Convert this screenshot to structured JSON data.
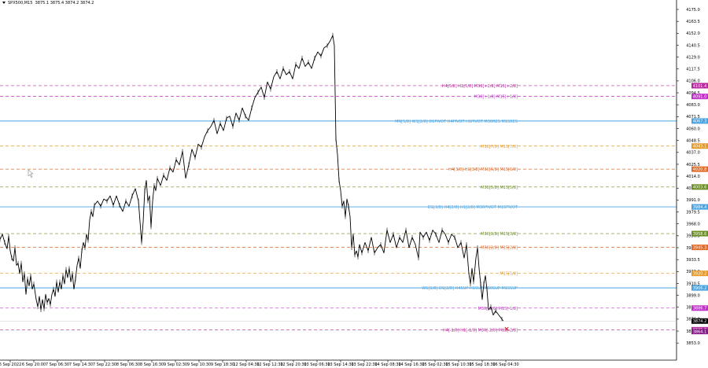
{
  "header": {
    "symbol": "SPX500,M15",
    "ohlc": "3875.1 3875.4 3874.2 3874.2"
  },
  "price_axis": {
    "ticks": [
      "4175.0",
      "4163.5",
      "4152.0",
      "4140.5",
      "4129.0",
      "4117.5",
      "4106.0",
      "4094.5",
      "4083.0",
      "4071.5",
      "4060.0",
      "4048.5",
      "4037.0",
      "4025.5",
      "4014.0",
      "4002.5",
      "3991.0",
      "3979.5",
      "3968.0",
      "3956.5",
      "3945.0",
      "3933.5",
      "3922.0",
      "3910.5",
      "3899.0",
      "3887.5",
      "3876.0",
      "3864.5",
      "3853.0"
    ]
  },
  "time_axis": {
    "labels": [
      "6 Sep 2022",
      "6 Sep 20:00",
      "7 Sep 06:30",
      "7 Sep 14:30",
      "7 Sep 22:30",
      "8 Sep 06:30",
      "8 Sep 16:30",
      "9 Sep 02:30",
      "9 Sep 10:30",
      "9 Sep 18:30",
      "12 Sep 04:30",
      "12 Sep 12:30",
      "12 Sep 20:30",
      "13 Sep 06:30",
      "13 Sep 14:30",
      "13 Sep 22:30",
      "14 Sep 08:30",
      "14 Sep 16:30",
      "15 Sep 02:30",
      "15 Sep 10:30",
      "15 Sep 18:30",
      "16 Sep 04:30"
    ]
  },
  "levels": [
    {
      "label": "H4[5/8] H1[5/8] M30[+2/8] M15[+2/8]",
      "price": 4101.4,
      "tag": "4101.4",
      "color": "#b8289c",
      "style": "dash"
    },
    {
      "label": "M30[+1/8] M15[+1/8]",
      "price": 4091.0,
      "tag": "4091.0",
      "color": "#c030c8",
      "style": "dash"
    },
    {
      "label": "MN[5/8] W1[2/8] D1PIVOT H4PIVOT H1PIVOT M30RES M15RES",
      "price": 4067.3,
      "tag": "4067.3",
      "color": "#4aa3df",
      "style": "solid"
    },
    {
      "label": "M30[7/8] M15[7/8]",
      "price": 4043.1,
      "tag": "4043.1",
      "color": "#e69a28",
      "style": "dash"
    },
    {
      "label": "H4[3/8] H1[3/8] M30[6/8] M15[6/8]",
      "price": 4020.8,
      "tag": "4020.8",
      "color": "#e06a28",
      "style": "dash"
    },
    {
      "label": "M30[5/8] M15[5/8]",
      "price": 4003.6,
      "tag": "4003.6",
      "color": "#6b8e23",
      "style": "dash"
    },
    {
      "label": "D1[3/8] H4[2/8] H1[2/8] M30PIVOT M15PIVOT",
      "price": 3984.4,
      "tag": "3984.4",
      "color": "#4aa3df",
      "style": "solid"
    },
    {
      "label": "M30[3/8] M15[3/8]",
      "price": 3958.6,
      "tag": "3958.6",
      "color": "#6b8e23",
      "style": "dash"
    },
    {
      "label": "M30[2/8] M15[2/8]",
      "price": 3945.3,
      "tag": "3945.3",
      "color": "#e06a28",
      "style": "dash"
    },
    {
      "label": "M15[1/8]",
      "price": 3920.2,
      "tag": "3920.2",
      "color": "#e69a28",
      "style": "dash"
    },
    {
      "label": "W1[1/8] D1[2/8] H4SUP H1SUP M30SUP M15SUP",
      "price": 3906.2,
      "tag": "3906.2",
      "color": "#4aa3df",
      "style": "solid"
    },
    {
      "label": "M30[-1/8] M15[-1/8]",
      "price": 3886.7,
      "tag": "3886.7",
      "color": "#c030c8",
      "style": "dash"
    },
    {
      "label": "H4[-1/8] H1[-1/8] M30[-2/8] M15[-2/8]",
      "price": 3865.8,
      "tag": "3865.8",
      "color": "#b8289c",
      "style": "dash"
    }
  ],
  "current_price": {
    "price": 3874.2,
    "tag": "3874.2"
  },
  "extra_tag": {
    "price": 3864.1,
    "tag": "3864.1",
    "color": "#8a1a8a"
  },
  "price_path": [
    [
      0,
      3953
    ],
    [
      3,
      3958
    ],
    [
      6,
      3950
    ],
    [
      9,
      3944
    ],
    [
      11,
      3956
    ],
    [
      13,
      3942
    ],
    [
      15,
      3935
    ],
    [
      17,
      3932
    ],
    [
      19,
      3945
    ],
    [
      21,
      3928
    ],
    [
      23,
      3930
    ],
    [
      25,
      3920
    ],
    [
      27,
      3930
    ],
    [
      29,
      3912
    ],
    [
      31,
      3920
    ],
    [
      33,
      3900
    ],
    [
      35,
      3915
    ],
    [
      37,
      3908
    ],
    [
      39,
      3918
    ],
    [
      41,
      3905
    ],
    [
      43,
      3910
    ],
    [
      46,
      3895
    ],
    [
      48,
      3888
    ],
    [
      50,
      3898
    ],
    [
      52,
      3885
    ],
    [
      54,
      3895
    ],
    [
      56,
      3886
    ],
    [
      58,
      3900
    ],
    [
      60,
      3892
    ],
    [
      62,
      3896
    ],
    [
      64,
      3890
    ],
    [
      66,
      3900
    ],
    [
      68,
      3905
    ],
    [
      70,
      3898
    ],
    [
      72,
      3912
    ],
    [
      74,
      3902
    ],
    [
      76,
      3912
    ],
    [
      78,
      3905
    ],
    [
      80,
      3918
    ],
    [
      82,
      3910
    ],
    [
      84,
      3924
    ],
    [
      86,
      3916
    ],
    [
      88,
      3925
    ],
    [
      90,
      3912
    ],
    [
      92,
      3920
    ],
    [
      94,
      3905
    ],
    [
      96,
      3915
    ],
    [
      98,
      3928
    ],
    [
      100,
      3935
    ],
    [
      102,
      3925
    ],
    [
      104,
      3942
    ],
    [
      106,
      3950
    ],
    [
      108,
      3945
    ],
    [
      110,
      3958
    ],
    [
      112,
      3952
    ],
    [
      114,
      3972
    ],
    [
      116,
      3980
    ],
    [
      118,
      3975
    ],
    [
      120,
      3986
    ],
    [
      124,
      3990
    ],
    [
      128,
      3985
    ],
    [
      132,
      3992
    ],
    [
      136,
      3990
    ],
    [
      140,
      3995
    ],
    [
      144,
      3986
    ],
    [
      148,
      3995
    ],
    [
      152,
      3986
    ],
    [
      156,
      3980
    ],
    [
      160,
      3990
    ],
    [
      164,
      3985
    ],
    [
      168,
      3995
    ],
    [
      172,
      4002
    ],
    [
      176,
      3990
    ],
    [
      178,
      3970
    ],
    [
      180,
      3950
    ],
    [
      182,
      3970
    ],
    [
      184,
      4000
    ],
    [
      186,
      4010
    ],
    [
      188,
      3990
    ],
    [
      190,
      3995
    ],
    [
      192,
      3965
    ],
    [
      194,
      3990
    ],
    [
      196,
      4005
    ],
    [
      198,
      4000
    ],
    [
      200,
      4012
    ],
    [
      204,
      4005
    ],
    [
      208,
      4015
    ],
    [
      212,
      4010
    ],
    [
      216,
      4022
    ],
    [
      220,
      4018
    ],
    [
      224,
      4030
    ],
    [
      228,
      4025
    ],
    [
      232,
      4038
    ],
    [
      236,
      4012
    ],
    [
      240,
      4025
    ],
    [
      244,
      4040
    ],
    [
      248,
      4032
    ],
    [
      252,
      4045
    ],
    [
      256,
      4042
    ],
    [
      260,
      4052
    ],
    [
      264,
      4058
    ],
    [
      268,
      4062
    ],
    [
      272,
      4068
    ],
    [
      276,
      4055
    ],
    [
      280,
      4065
    ],
    [
      284,
      4058
    ],
    [
      288,
      4070
    ],
    [
      292,
      4072
    ],
    [
      296,
      4062
    ],
    [
      300,
      4075
    ],
    [
      304,
      4068
    ],
    [
      308,
      4080
    ],
    [
      312,
      4072
    ],
    [
      316,
      4068
    ],
    [
      320,
      4080
    ],
    [
      324,
      4090
    ],
    [
      328,
      4095
    ],
    [
      332,
      4100
    ],
    [
      336,
      4090
    ],
    [
      340,
      4105
    ],
    [
      344,
      4098
    ],
    [
      348,
      4110
    ],
    [
      352,
      4115
    ],
    [
      356,
      4108
    ],
    [
      360,
      4118
    ],
    [
      364,
      4112
    ],
    [
      368,
      4115
    ],
    [
      372,
      4108
    ],
    [
      376,
      4122
    ],
    [
      380,
      4118
    ],
    [
      384,
      4128
    ],
    [
      388,
      4120
    ],
    [
      392,
      4124
    ],
    [
      396,
      4118
    ],
    [
      400,
      4128
    ],
    [
      404,
      4134
    ],
    [
      408,
      4130
    ],
    [
      412,
      4138
    ],
    [
      416,
      4140
    ],
    [
      420,
      4145
    ],
    [
      423,
      4150
    ],
    [
      425,
      4140
    ],
    [
      427,
      4050
    ],
    [
      429,
      4035
    ],
    [
      431,
      4010
    ],
    [
      433,
      4000
    ],
    [
      435,
      3985
    ],
    [
      437,
      3990
    ],
    [
      439,
      3975
    ],
    [
      441,
      3992
    ],
    [
      443,
      3985
    ],
    [
      445,
      3975
    ],
    [
      447,
      3945
    ],
    [
      449,
      3958
    ],
    [
      451,
      3938
    ],
    [
      453,
      3942
    ],
    [
      455,
      3936
    ],
    [
      457,
      3948
    ],
    [
      460,
      3940
    ],
    [
      464,
      3950
    ],
    [
      468,
      3942
    ],
    [
      472,
      3955
    ],
    [
      476,
      3940
    ],
    [
      480,
      3945
    ],
    [
      484,
      3948
    ],
    [
      488,
      3940
    ],
    [
      492,
      3962
    ],
    [
      496,
      3950
    ],
    [
      500,
      3958
    ],
    [
      504,
      3945
    ],
    [
      508,
      3955
    ],
    [
      512,
      3950
    ],
    [
      516,
      3962
    ],
    [
      520,
      3945
    ],
    [
      524,
      3955
    ],
    [
      528,
      3948
    ],
    [
      532,
      3935
    ],
    [
      534,
      3960
    ],
    [
      538,
      3955
    ],
    [
      542,
      3960
    ],
    [
      546,
      3952
    ],
    [
      550,
      3962
    ],
    [
      554,
      3958
    ],
    [
      558,
      3950
    ],
    [
      562,
      3962
    ],
    [
      566,
      3958
    ],
    [
      570,
      3950
    ],
    [
      574,
      3958
    ],
    [
      578,
      3955
    ],
    [
      582,
      3945
    ],
    [
      586,
      3950
    ],
    [
      590,
      3935
    ],
    [
      593,
      3948
    ],
    [
      596,
      3920
    ],
    [
      598,
      3910
    ],
    [
      600,
      3925
    ],
    [
      602,
      3912
    ],
    [
      605,
      3935
    ],
    [
      607,
      3945
    ],
    [
      609,
      3925
    ],
    [
      611,
      3910
    ],
    [
      613,
      3895
    ],
    [
      615,
      3910
    ],
    [
      617,
      3918
    ],
    [
      619,
      3905
    ],
    [
      621,
      3885
    ],
    [
      624,
      3888
    ],
    [
      627,
      3880
    ],
    [
      630,
      3884
    ],
    [
      634,
      3880
    ],
    [
      638,
      3876
    ],
    [
      640,
      3874
    ]
  ],
  "marker": {
    "symbol": "✕",
    "color": "#d01818",
    "price": 3866.5
  }
}
